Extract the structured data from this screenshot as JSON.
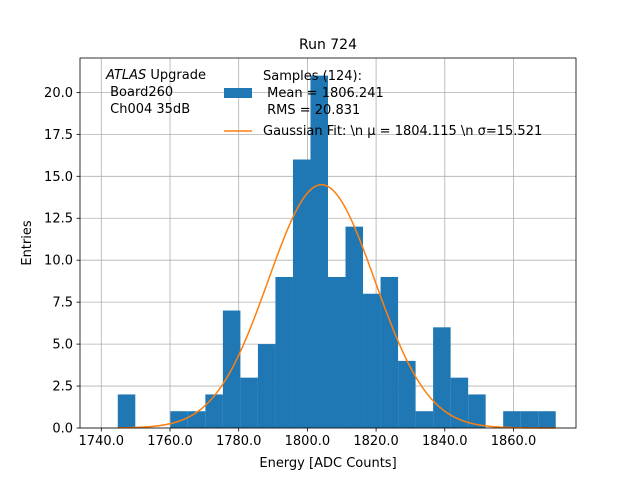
{
  "chart_data": {
    "type": "bar",
    "title": "Run 724",
    "xlabel": "Energy [ADC Counts]",
    "ylabel": "Entries",
    "xlim": [
      1733.8,
      1878.2
    ],
    "ylim": [
      0,
      22.05
    ],
    "grid": true,
    "legend_placement": "top-right",
    "xticks": [
      {
        "value": 1740,
        "label": "1740.0"
      },
      {
        "value": 1760,
        "label": "1760.0"
      },
      {
        "value": 1780,
        "label": "1780.0"
      },
      {
        "value": 1800,
        "label": "1800.0"
      },
      {
        "value": 1820,
        "label": "1820.0"
      },
      {
        "value": 1840,
        "label": "1840.0"
      },
      {
        "value": 1860,
        "label": "1860.0"
      }
    ],
    "yticks": [
      {
        "value": 0,
        "label": "0.0"
      },
      {
        "value": 2.5,
        "label": "2.5"
      },
      {
        "value": 5,
        "label": "5.0"
      },
      {
        "value": 7.5,
        "label": "7.5"
      },
      {
        "value": 10,
        "label": "10.0"
      },
      {
        "value": 12.5,
        "label": "12.5"
      },
      {
        "value": 15,
        "label": "15.0"
      },
      {
        "value": 17.5,
        "label": "17.5"
      },
      {
        "value": 20,
        "label": "20.0"
      }
    ],
    "bin_edges": [
      1744.8,
      1749.9,
      1755.0,
      1760.1,
      1765.2,
      1770.3,
      1775.4,
      1780.5,
      1785.6,
      1790.7,
      1795.8,
      1800.9,
      1806.0,
      1811.1,
      1816.2,
      1821.3,
      1826.4,
      1831.5,
      1836.6,
      1841.7,
      1846.8,
      1851.9,
      1857.0,
      1862.1,
      1867.2,
      1872.3
    ],
    "series": [
      {
        "name": "Samples (124):\n Mean = 1806.241\n RMS = 20.831",
        "type": "histogram",
        "color": "#1f77b4",
        "values": [
          2,
          0,
          0,
          1,
          1,
          2,
          7,
          3,
          5,
          9,
          16,
          21,
          9,
          12,
          8,
          9,
          4,
          1,
          6,
          3,
          2,
          0,
          1,
          1,
          1
        ]
      },
      {
        "name": "Gaussian Fit: \\n $\\mu$ = 1804.115 \\n $\\sigma$=15.521",
        "type": "line",
        "color": "#ff7f0e",
        "mu": 1804.115,
        "sigma": 15.521,
        "amplitude": 14.5
      }
    ],
    "legend": [
      {
        "lines": [
          "Samples (124):",
          " Mean = 1806.241",
          " RMS = 20.831"
        ],
        "color": "#1f77b4",
        "marker": "patch"
      },
      {
        "lines": [
          "Gaussian Fit: \\n μ = 1804.115 \\n σ=15.521"
        ],
        "color": "#ff7f0e",
        "marker": "line"
      }
    ],
    "annotation": {
      "line1_italic": "ATLAS",
      "line1_rest": " Upgrade",
      "line2": " Board260",
      "line3": " Ch004 35dB"
    }
  }
}
